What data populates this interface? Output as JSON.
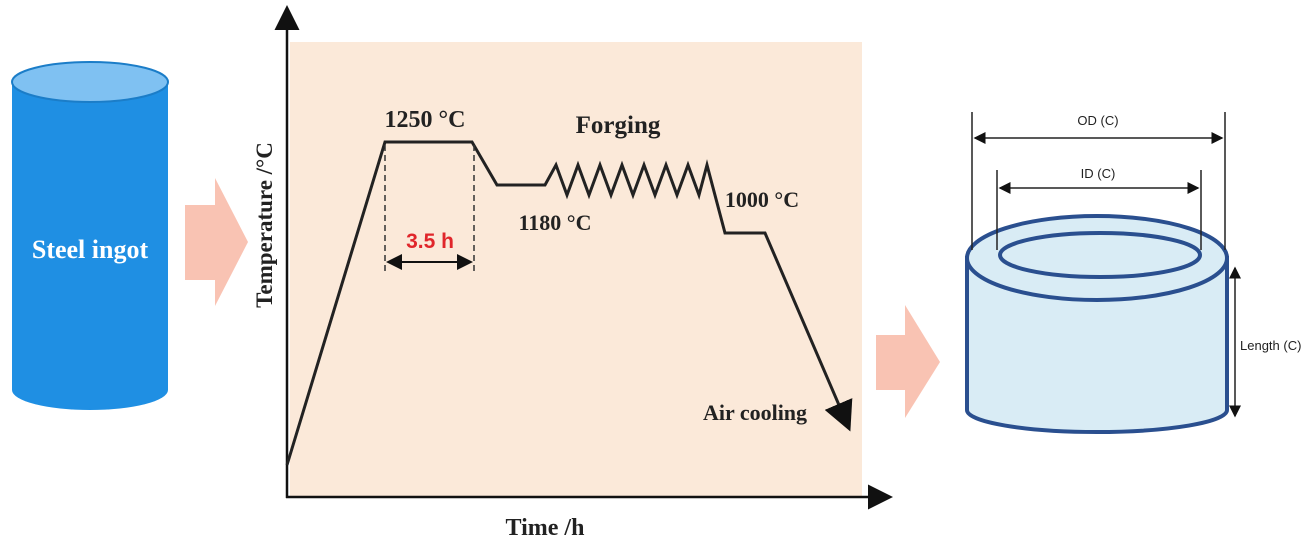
{
  "ingot": {
    "label": "Steel ingot"
  },
  "process": {
    "y_axis_label": "Temperature /°C",
    "x_axis_label": "Time /h",
    "annotations": {
      "peak": "1250 °C",
      "forging": "Forging",
      "forge_start": "1180 °C",
      "forge_end": "1000 °C",
      "hold": "3.5 h",
      "cooling": "Air cooling"
    }
  },
  "product": {
    "outer_diameter": "OD (C)",
    "inner_diameter": "ID (C)",
    "length": "Length (C)"
  }
}
